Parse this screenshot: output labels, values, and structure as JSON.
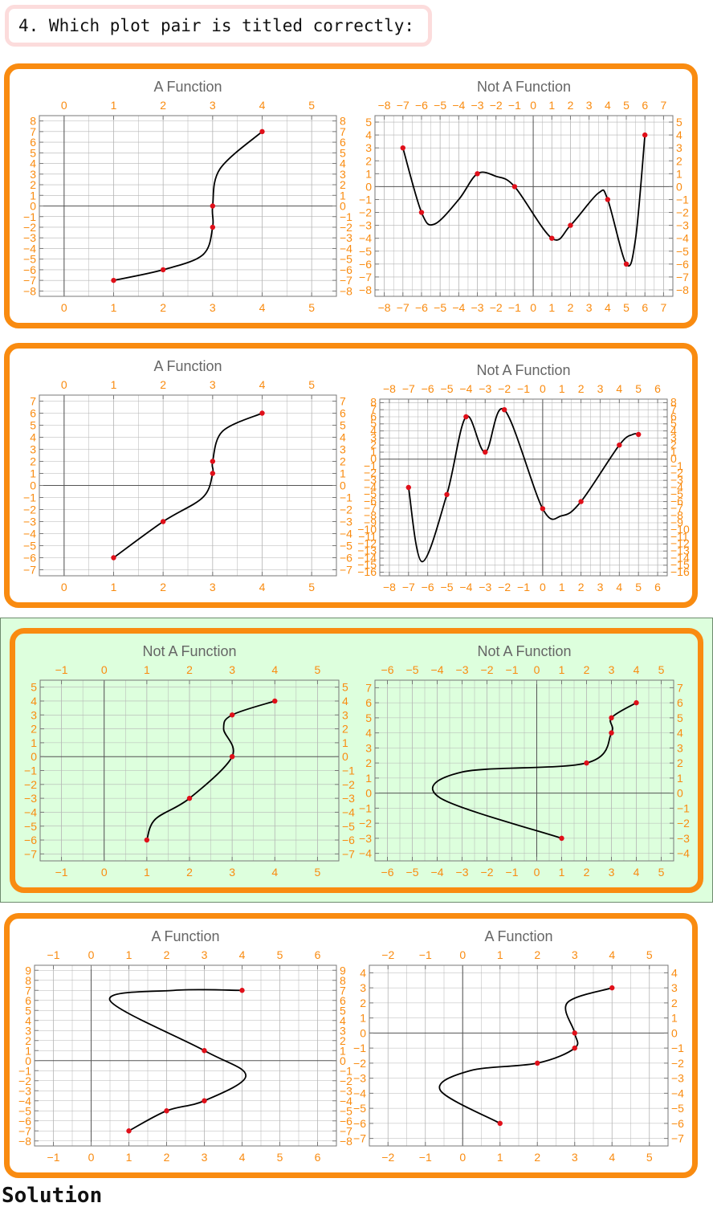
{
  "question": "4. Which plot pair is titled correctly:",
  "solution_label": "Solution",
  "colors": {
    "panel_border": "#f98b10",
    "highlight": "#ddffdd",
    "curve": "#000000",
    "point": "#e0101a",
    "tick_label": "#f98b10",
    "title": "#666666",
    "grid": "#b4b4b4"
  },
  "chart_data": [
    {
      "pair": 1,
      "side": "left",
      "type": "line",
      "title": "A Function",
      "xlim": [
        -0.5,
        5.5
      ],
      "ylim": [
        -8.5,
        8.5
      ],
      "xticks": [
        0,
        1,
        2,
        3,
        4,
        5
      ],
      "yticks": [
        -8,
        -7,
        -6,
        -5,
        -4,
        -3,
        -2,
        -1,
        0,
        1,
        2,
        3,
        4,
        5,
        6,
        7,
        8
      ],
      "curve": [
        [
          1,
          -7
        ],
        [
          2,
          -6
        ],
        [
          2.8,
          -4.6
        ],
        [
          3,
          -2
        ],
        [
          3,
          0
        ],
        [
          3.15,
          3.5
        ],
        [
          4,
          7
        ]
      ],
      "points": [
        [
          1,
          -7
        ],
        [
          2,
          -6
        ],
        [
          3,
          -2
        ],
        [
          3,
          0
        ],
        [
          4,
          7
        ]
      ]
    },
    {
      "pair": 1,
      "side": "right",
      "type": "line",
      "title": "Not A Function",
      "xlim": [
        -8.5,
        7.5
      ],
      "ylim": [
        -8.5,
        5.5
      ],
      "xticks": [
        -8,
        -7,
        -6,
        -5,
        -4,
        -3,
        -2,
        -1,
        0,
        1,
        2,
        3,
        4,
        5,
        6,
        7
      ],
      "yticks": [
        -8,
        -7,
        -6,
        -5,
        -4,
        -3,
        -2,
        -1,
        0,
        1,
        2,
        3,
        4,
        5
      ],
      "curve": [
        [
          -7,
          3
        ],
        [
          -6,
          -2
        ],
        [
          -5.3,
          -2.9
        ],
        [
          -4,
          -1
        ],
        [
          -3,
          1
        ],
        [
          -2,
          0.8
        ],
        [
          -1,
          0
        ],
        [
          1,
          -4
        ],
        [
          2,
          -3
        ],
        [
          3.5,
          -0.5
        ],
        [
          4,
          -1
        ],
        [
          5,
          -6
        ],
        [
          5.5,
          -4
        ],
        [
          6,
          4
        ]
      ],
      "points": [
        [
          -7,
          3
        ],
        [
          -6,
          -2
        ],
        [
          -3,
          1
        ],
        [
          -1,
          0
        ],
        [
          1,
          -4
        ],
        [
          2,
          -3
        ],
        [
          4,
          -1
        ],
        [
          5,
          -6
        ],
        [
          6,
          4
        ]
      ]
    },
    {
      "pair": 2,
      "side": "left",
      "type": "line",
      "title": "A Function",
      "xlim": [
        -0.5,
        5.5
      ],
      "ylim": [
        -7.5,
        7.5
      ],
      "xticks": [
        0,
        1,
        2,
        3,
        4,
        5
      ],
      "yticks": [
        -7,
        -6,
        -5,
        -4,
        -3,
        -2,
        -1,
        0,
        1,
        2,
        3,
        4,
        5,
        6,
        7
      ],
      "curve": [
        [
          1,
          -6
        ],
        [
          2,
          -3
        ],
        [
          2.8,
          -1
        ],
        [
          3,
          1
        ],
        [
          3,
          2
        ],
        [
          3.2,
          4.5
        ],
        [
          4,
          6
        ]
      ],
      "points": [
        [
          1,
          -6
        ],
        [
          2,
          -3
        ],
        [
          3,
          1
        ],
        [
          3,
          2
        ],
        [
          4,
          6
        ]
      ]
    },
    {
      "pair": 2,
      "side": "right",
      "type": "line",
      "title": "Not A Function",
      "xlim": [
        -8.5,
        6.5
      ],
      "ylim": [
        -16.5,
        8.5
      ],
      "xticks": [
        -8,
        -7,
        -6,
        -5,
        -4,
        -3,
        -2,
        -1,
        0,
        1,
        2,
        3,
        4,
        5,
        6
      ],
      "yticks": [
        -16,
        -15,
        -14,
        -13,
        -12,
        -11,
        -10,
        -9,
        -8,
        -7,
        -6,
        -5,
        -4,
        -3,
        -2,
        -1,
        0,
        1,
        2,
        3,
        4,
        5,
        6,
        7,
        8
      ],
      "curve": [
        [
          -7,
          -4
        ],
        [
          -6.3,
          -14.5
        ],
        [
          -5,
          -5
        ],
        [
          -4,
          6
        ],
        [
          -3,
          1
        ],
        [
          -2,
          7
        ],
        [
          0,
          -7
        ],
        [
          1,
          -8
        ],
        [
          2,
          -6
        ],
        [
          4,
          2
        ],
        [
          4.7,
          3.5
        ],
        [
          5,
          3.5
        ]
      ],
      "points": [
        [
          -7,
          -4
        ],
        [
          -5,
          -5
        ],
        [
          -4,
          6
        ],
        [
          -3,
          1
        ],
        [
          -2,
          7
        ],
        [
          0,
          -7
        ],
        [
          2,
          -6
        ],
        [
          4,
          2
        ],
        [
          5,
          3.5
        ]
      ]
    },
    {
      "pair": 3,
      "side": "left",
      "type": "line",
      "title": "Not A Function",
      "xlim": [
        -1.5,
        5.5
      ],
      "ylim": [
        -7.5,
        5.5
      ],
      "xticks": [
        -1,
        0,
        1,
        2,
        3,
        4,
        5
      ],
      "yticks": [
        -7,
        -6,
        -5,
        -4,
        -3,
        -2,
        -1,
        0,
        1,
        2,
        3,
        4,
        5
      ],
      "curve": [
        [
          1,
          -6
        ],
        [
          1.2,
          -4.5
        ],
        [
          2,
          -3
        ],
        [
          3,
          0
        ],
        [
          2.8,
          2
        ],
        [
          3,
          3
        ],
        [
          4,
          4
        ]
      ],
      "points": [
        [
          1,
          -6
        ],
        [
          2,
          -3
        ],
        [
          3,
          0
        ],
        [
          3,
          3
        ],
        [
          4,
          4
        ]
      ]
    },
    {
      "pair": 3,
      "side": "right",
      "type": "line",
      "title": "Not A Function",
      "xlim": [
        -6.5,
        5.5
      ],
      "ylim": [
        -4.5,
        7.5
      ],
      "xticks": [
        -6,
        -5,
        -4,
        -3,
        -2,
        -1,
        0,
        1,
        2,
        3,
        4,
        5
      ],
      "yticks": [
        -4,
        -3,
        -2,
        -1,
        0,
        1,
        2,
        3,
        4,
        5,
        6,
        7
      ],
      "curve": [
        [
          1,
          -3
        ],
        [
          -3.9,
          -0.3
        ],
        [
          -3,
          1.4
        ],
        [
          2,
          2
        ],
        [
          3,
          4
        ],
        [
          3,
          5
        ],
        [
          4,
          6
        ]
      ],
      "points": [
        [
          1,
          -3
        ],
        [
          2,
          2
        ],
        [
          3,
          4
        ],
        [
          3,
          5
        ],
        [
          4,
          6
        ]
      ]
    },
    {
      "pair": 4,
      "side": "left",
      "type": "line",
      "title": "A Function",
      "xlim": [
        -1.5,
        6.5
      ],
      "ylim": [
        -8.5,
        9.5
      ],
      "xticks": [
        -1,
        0,
        1,
        2,
        3,
        4,
        5,
        6
      ],
      "yticks": [
        -8,
        -7,
        -6,
        -5,
        -4,
        -3,
        -2,
        -1,
        0,
        1,
        2,
        3,
        4,
        5,
        6,
        7,
        8,
        9
      ],
      "curve": [
        [
          1,
          -7
        ],
        [
          2,
          -5
        ],
        [
          3,
          -4
        ],
        [
          4.1,
          -1.5
        ],
        [
          3,
          1
        ],
        [
          0.5,
          6
        ],
        [
          2.2,
          7
        ],
        [
          4,
          7
        ]
      ],
      "points": [
        [
          1,
          -7
        ],
        [
          2,
          -5
        ],
        [
          3,
          -4
        ],
        [
          3,
          1
        ],
        [
          4,
          7
        ]
      ]
    },
    {
      "pair": 4,
      "side": "right",
      "type": "line",
      "title": "A Function",
      "xlim": [
        -2.5,
        5.5
      ],
      "ylim": [
        -7.5,
        4.5
      ],
      "xticks": [
        -2,
        -1,
        0,
        1,
        2,
        3,
        4,
        5
      ],
      "yticks": [
        -7,
        -6,
        -5,
        -4,
        -3,
        -2,
        -1,
        0,
        1,
        2,
        3,
        4
      ],
      "curve": [
        [
          1,
          -6
        ],
        [
          -0.6,
          -3.8
        ],
        [
          0.2,
          -2.5
        ],
        [
          2,
          -2
        ],
        [
          3,
          -1
        ],
        [
          3,
          0
        ],
        [
          2.8,
          2
        ],
        [
          4,
          3
        ]
      ],
      "points": [
        [
          1,
          -6
        ],
        [
          2,
          -2
        ],
        [
          3,
          -1
        ],
        [
          3,
          0
        ],
        [
          4,
          3
        ]
      ]
    }
  ]
}
